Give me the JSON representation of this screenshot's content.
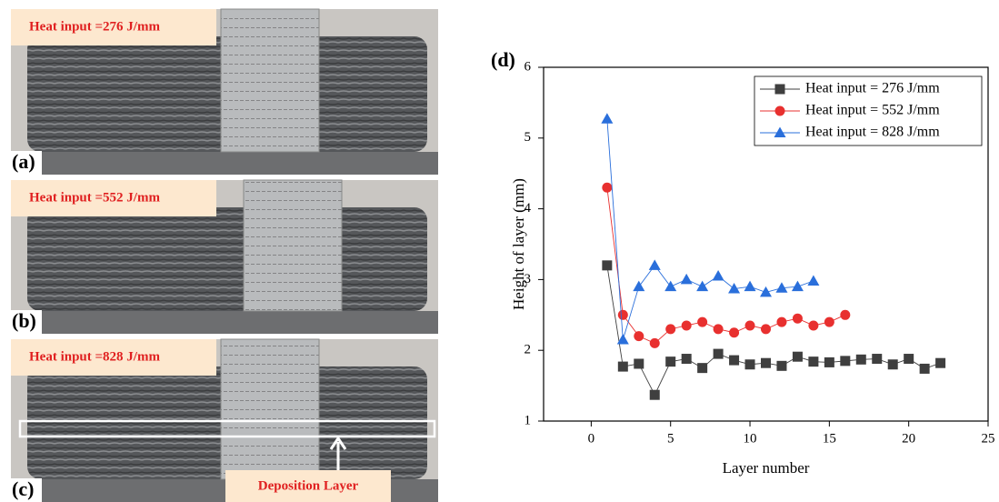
{
  "panels": [
    {
      "letter": "(a)",
      "label": "Heat input =276 J/mm"
    },
    {
      "letter": "(b)",
      "label": "Heat input =552 J/mm"
    },
    {
      "letter": "(c)",
      "label": "Heat input =828 J/mm"
    }
  ],
  "annotation": "Deposition Layer",
  "chart_data": {
    "type": "line",
    "title": "(d)",
    "x_label": "Layer number",
    "y_label": "Height of layer (mm)",
    "xlim": [
      -3,
      25
    ],
    "ylim": [
      1,
      6
    ],
    "xticks": [
      0,
      5,
      10,
      15,
      20,
      25
    ],
    "yticks": [
      1,
      2,
      3,
      4,
      5,
      6
    ],
    "legend": "upper-right",
    "series": [
      {
        "name": "Heat input = 276 J/mm",
        "color": "#3f3f3f",
        "marker": "square",
        "x": [
          1,
          2,
          3,
          4,
          5,
          6,
          7,
          8,
          9,
          10,
          11,
          12,
          13,
          14,
          15,
          16,
          17,
          18,
          19,
          20,
          21,
          22
        ],
        "values": [
          3.2,
          1.77,
          1.81,
          1.37,
          1.84,
          1.88,
          1.75,
          1.95,
          1.86,
          1.8,
          1.82,
          1.78,
          1.91,
          1.84,
          1.83,
          1.85,
          1.87,
          1.88,
          1.8,
          1.88,
          1.74,
          1.82
        ]
      },
      {
        "name": "Heat input = 552 J/mm",
        "color": "#e8302f",
        "marker": "circle",
        "x": [
          1,
          2,
          3,
          4,
          5,
          6,
          7,
          8,
          9,
          10,
          11,
          12,
          13,
          14,
          15,
          16
        ],
        "values": [
          4.3,
          2.5,
          2.2,
          2.1,
          2.3,
          2.35,
          2.4,
          2.3,
          2.25,
          2.35,
          2.3,
          2.4,
          2.45,
          2.35,
          2.4,
          2.5
        ]
      },
      {
        "name": "Heat input = 828 J/mm",
        "color": "#2a6fdb",
        "marker": "triangle",
        "x": [
          1,
          2,
          3,
          4,
          5,
          6,
          7,
          8,
          9,
          10,
          11,
          12,
          13,
          14
        ],
        "values": [
          5.27,
          2.15,
          2.9,
          3.2,
          2.9,
          3.0,
          2.9,
          3.05,
          2.87,
          2.9,
          2.82,
          2.88,
          2.9,
          2.98
        ]
      }
    ]
  }
}
